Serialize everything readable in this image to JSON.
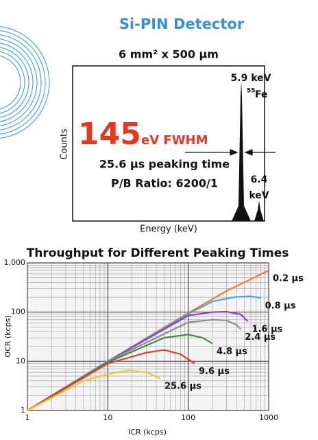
{
  "title": "Si-PIN Detector",
  "spectrum": {
    "subtitle": "6 mm² x 500 µm",
    "x_label": "Energy (keV)",
    "y_label": "Counts",
    "resolution": "145",
    "resolution_unit": "eV FWHM",
    "peaking_time": "25.6 µs peaking time",
    "pb_ratio": "P/B Ratio:  6200/1",
    "peak1_energy": "5.9 keV",
    "peak1_isotope_mass": "55",
    "peak1_isotope": "Fe",
    "peak2_value": "6.4",
    "peak2_unit": "keV"
  },
  "chart_data": {
    "type": "line",
    "title": "Throughput for Different Peaking Times",
    "x_label": "ICR (kcps)",
    "y_label": "OCR (kcps)",
    "log_x": true,
    "log_y": true,
    "grid": true,
    "xlim": [
      1,
      1000
    ],
    "ylim": [
      1,
      1000
    ],
    "xticks": [
      1,
      10,
      100,
      1000
    ],
    "yticks": [
      1,
      10,
      100,
      {
        "value": 1000,
        "label": "1,000"
      }
    ],
    "series": [
      {
        "name": "0.2 µs",
        "color": "#f07a2a",
        "x": [
          1,
          10,
          100,
          300,
          1000
        ],
        "values": [
          1,
          10,
          96,
          270,
          700
        ]
      },
      {
        "name": "0.8 µs",
        "color": "#4aa3e8",
        "x": [
          1,
          10,
          100,
          200,
          400,
          600,
          800
        ],
        "values": [
          1,
          10,
          92,
          165,
          205,
          210,
          195
        ]
      },
      {
        "name": "1.6 µs",
        "color": "#8a3fb5",
        "x": [
          1,
          10,
          100,
          200,
          300,
          450,
          550
        ],
        "values": [
          1,
          10,
          85,
          100,
          102,
          90,
          65
        ]
      },
      {
        "name": "2.4 µs",
        "color": "#8c8c8c",
        "x": [
          1,
          10,
          100,
          200,
          300,
          400,
          450
        ],
        "values": [
          1,
          10,
          62,
          70,
          68,
          55,
          45
        ]
      },
      {
        "name": "4.8 µs",
        "color": "#3f8a3a",
        "x": [
          1,
          10,
          50,
          100,
          150,
          200
        ],
        "values": [
          1,
          9.5,
          30,
          35,
          30,
          23
        ]
      },
      {
        "name": "9.6 µs",
        "color": "#e83a2a",
        "x": [
          1,
          10,
          30,
          50,
          80,
          120
        ],
        "values": [
          1,
          9,
          15,
          17,
          14,
          9
        ]
      },
      {
        "name": "25.6 µs",
        "color": "#f2c531",
        "x": [
          1,
          5,
          10,
          18,
          30,
          45
        ],
        "values": [
          1,
          4,
          5.5,
          6.5,
          6,
          4.5
        ]
      }
    ]
  }
}
